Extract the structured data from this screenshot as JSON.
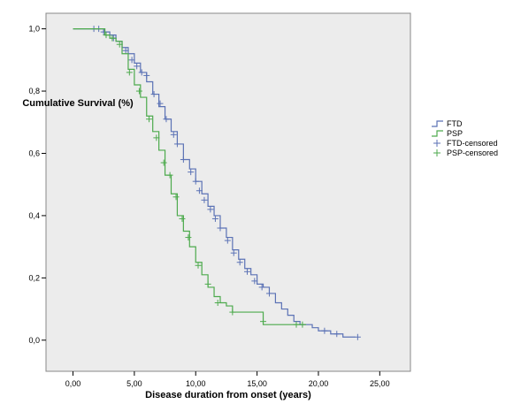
{
  "chart_data": {
    "type": "line",
    "title": "",
    "xlabel": "Disease duration from onset (years)",
    "ylabel": "Cumulative Survival (%)",
    "xlim": [
      -2.2,
      27.5
    ],
    "ylim": [
      -0.1,
      1.05
    ],
    "x_ticks": [
      0,
      5,
      10,
      15,
      20,
      25
    ],
    "x_tick_labels": [
      "0,00",
      "5,00",
      "10,00",
      "15,00",
      "20,00",
      "25,00"
    ],
    "y_ticks": [
      0,
      0.2,
      0.4,
      0.6,
      0.8,
      1.0
    ],
    "y_tick_labels": [
      "0,0",
      "0,2",
      "0,4",
      "0,6",
      "0,8",
      "1,0"
    ],
    "plot_background": "#ececec",
    "legend_position": "right",
    "legend": [
      {
        "label": "FTD",
        "kind": "line",
        "color": "#5b72b5"
      },
      {
        "label": "PSP",
        "kind": "line",
        "color": "#4daa4d"
      },
      {
        "label": "FTD-censored",
        "kind": "censor",
        "color": "#5b72b5"
      },
      {
        "label": "PSP-censored",
        "kind": "censor",
        "color": "#4daa4d"
      }
    ],
    "series": [
      {
        "name": "FTD",
        "color": "#5b72b5",
        "x": [
          0,
          2.0,
          2.5,
          3.0,
          3.5,
          4.0,
          4.5,
          5.0,
          5.5,
          6.0,
          6.5,
          7.0,
          7.5,
          8.0,
          8.5,
          9.0,
          9.5,
          10.0,
          10.5,
          11.0,
          11.5,
          12.0,
          12.5,
          13.0,
          13.5,
          14.0,
          14.5,
          15.0,
          15.5,
          16.0,
          16.5,
          17.0,
          17.5,
          18.0,
          18.5,
          19.0,
          19.5,
          20.0,
          20.5,
          21.0,
          22.0,
          23.0
        ],
        "y": [
          1.0,
          1.0,
          0.99,
          0.98,
          0.96,
          0.94,
          0.92,
          0.89,
          0.86,
          0.83,
          0.79,
          0.75,
          0.71,
          0.67,
          0.63,
          0.58,
          0.55,
          0.51,
          0.47,
          0.43,
          0.4,
          0.36,
          0.33,
          0.29,
          0.26,
          0.23,
          0.21,
          0.18,
          0.17,
          0.15,
          0.12,
          0.1,
          0.08,
          0.06,
          0.05,
          0.05,
          0.04,
          0.03,
          0.03,
          0.02,
          0.01,
          0.01
        ],
        "censored": [
          [
            1.7,
            1.0
          ],
          [
            2.1,
            1.0
          ],
          [
            2.5,
            0.99
          ],
          [
            3.3,
            0.97
          ],
          [
            4.3,
            0.93
          ],
          [
            4.8,
            0.9
          ],
          [
            5.2,
            0.88
          ],
          [
            5.6,
            0.86
          ],
          [
            6.0,
            0.85
          ],
          [
            6.6,
            0.79
          ],
          [
            7.1,
            0.76
          ],
          [
            7.6,
            0.71
          ],
          [
            8.2,
            0.66
          ],
          [
            8.5,
            0.63
          ],
          [
            9.0,
            0.58
          ],
          [
            9.6,
            0.54
          ],
          [
            10.0,
            0.51
          ],
          [
            10.3,
            0.48
          ],
          [
            10.7,
            0.45
          ],
          [
            11.2,
            0.42
          ],
          [
            11.6,
            0.39
          ],
          [
            12.0,
            0.36
          ],
          [
            12.6,
            0.32
          ],
          [
            13.1,
            0.28
          ],
          [
            13.6,
            0.25
          ],
          [
            14.2,
            0.22
          ],
          [
            14.8,
            0.19
          ],
          [
            15.4,
            0.17
          ],
          [
            16.0,
            0.15
          ],
          [
            20.5,
            0.03
          ],
          [
            21.5,
            0.02
          ],
          [
            23.2,
            0.01
          ]
        ]
      },
      {
        "name": "PSP",
        "color": "#4daa4d",
        "x": [
          0,
          2.6,
          3.0,
          3.5,
          4.0,
          4.5,
          5.0,
          5.5,
          6.0,
          6.5,
          7.0,
          7.5,
          8.0,
          8.5,
          9.0,
          9.5,
          10.0,
          10.5,
          11.0,
          11.5,
          12.0,
          12.5,
          13.0,
          14.0,
          15.0,
          15.5,
          16.0,
          18.0,
          19.0
        ],
        "y": [
          1.0,
          0.98,
          0.97,
          0.96,
          0.92,
          0.87,
          0.82,
          0.78,
          0.72,
          0.67,
          0.61,
          0.53,
          0.47,
          0.4,
          0.35,
          0.3,
          0.25,
          0.21,
          0.17,
          0.14,
          0.12,
          0.11,
          0.09,
          0.09,
          0.09,
          0.05,
          0.05,
          0.05,
          0.05
        ],
        "censored": [
          [
            2.7,
            0.98
          ],
          [
            3.2,
            0.97
          ],
          [
            3.8,
            0.95
          ],
          [
            4.6,
            0.86
          ],
          [
            5.4,
            0.8
          ],
          [
            6.2,
            0.71
          ],
          [
            6.8,
            0.65
          ],
          [
            7.4,
            0.57
          ],
          [
            7.9,
            0.53
          ],
          [
            8.4,
            0.46
          ],
          [
            8.9,
            0.39
          ],
          [
            9.4,
            0.33
          ],
          [
            10.2,
            0.24
          ],
          [
            11.0,
            0.18
          ],
          [
            11.8,
            0.12
          ],
          [
            13.0,
            0.09
          ],
          [
            15.5,
            0.06
          ],
          [
            18.2,
            0.05
          ],
          [
            18.7,
            0.05
          ]
        ]
      }
    ]
  }
}
